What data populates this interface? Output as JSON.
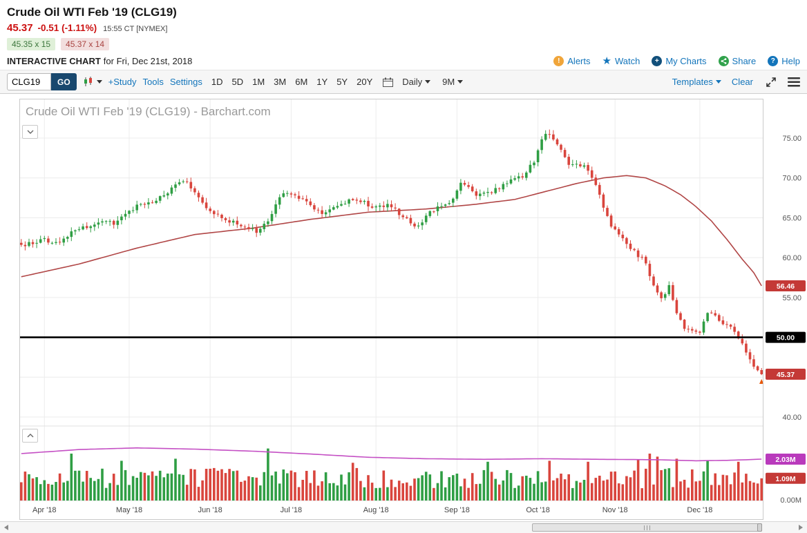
{
  "theme": {
    "link_blue": "#1375bb",
    "price_red": "#cc1111",
    "bid_bg": "#dff0d8",
    "bid_text": "#3c763d",
    "ask_bg": "#f2dede",
    "ask_text": "#a94442",
    "go_bg": "#19486e",
    "alert_orange": "#f0a53a",
    "mycharts_navy": "#12507b",
    "share_green": "#31a24c",
    "help_blue": "#1375bb",
    "up_green": "#2f9e44",
    "down_red": "#d9453d"
  },
  "header": {
    "title": "Crude Oil WTI Feb '19 (CLG19)",
    "last_price": "45.37",
    "change": "-0.51 (-1.11%)",
    "timestamp": "15:55 CT [NYMEX]",
    "bid": "45.35 x 15",
    "ask": "45.37 x 14",
    "section_label": "INTERACTIVE CHART",
    "section_context": "for Fri, Dec 21st, 2018",
    "links": {
      "alerts": "Alerts",
      "watch": "Watch",
      "my_charts": "My Charts",
      "share": "Share",
      "help": "Help"
    },
    "icons": {
      "alerts": "!",
      "watch": "★",
      "my_charts": "+",
      "help": "?"
    }
  },
  "toolbar": {
    "symbol_value": "CLG19",
    "go_label": "GO",
    "study_label": "+Study",
    "tools_label": "Tools",
    "settings_label": "Settings",
    "ranges": [
      "1D",
      "5D",
      "1M",
      "3M",
      "6M",
      "1Y",
      "5Y",
      "20Y"
    ],
    "frequency_value": "Daily",
    "span_value": "9M",
    "templates_label": "Templates",
    "clear_label": "Clear"
  },
  "chart_data": {
    "type": "candlestick",
    "title": "Crude Oil WTI Feb '19 (CLG19) - Barchart.com",
    "candle_count": 193,
    "last_close": 45.37,
    "y_axis": {
      "ticks": [
        {
          "value": 75,
          "label": "75.00"
        },
        {
          "value": 70,
          "label": "70.00"
        },
        {
          "value": 65,
          "label": "65.00"
        },
        {
          "value": 60,
          "label": "60.00"
        },
        {
          "value": 55,
          "label": "55.00"
        },
        {
          "value": 40,
          "label": "40.00"
        }
      ],
      "badges": [
        {
          "value": 56.46,
          "label": "56.46",
          "bg": "#c43936"
        },
        {
          "value": 50.0,
          "label": "50.00",
          "bg": "#000000"
        },
        {
          "value": 45.37,
          "label": "45.37",
          "bg": "#c43936"
        }
      ],
      "grid_values": [
        40,
        45,
        50,
        55,
        60,
        65,
        70,
        75
      ]
    },
    "x_axis": {
      "month_ticks": [
        {
          "index": 6,
          "label": "Apr '18"
        },
        {
          "index": 28,
          "label": "May '18"
        },
        {
          "index": 49,
          "label": "Jun '18"
        },
        {
          "index": 70,
          "label": "Jul '18"
        },
        {
          "index": 92,
          "label": "Aug '18"
        },
        {
          "index": 113,
          "label": "Sep '18"
        },
        {
          "index": 134,
          "label": "Oct '18"
        },
        {
          "index": 154,
          "label": "Nov '18"
        },
        {
          "index": 176,
          "label": "Dec '18"
        }
      ]
    },
    "horizontal_line": {
      "value": 50.0,
      "color": "#000000",
      "label": "50.00"
    },
    "price_path": [
      [
        0,
        61.6
      ],
      [
        6,
        62.2
      ],
      [
        10,
        62.0
      ],
      [
        14,
        63.6
      ],
      [
        18,
        64.0
      ],
      [
        22,
        64.6
      ],
      [
        24,
        64.2
      ],
      [
        27,
        65.6
      ],
      [
        30,
        66.5
      ],
      [
        34,
        67.1
      ],
      [
        38,
        68.2
      ],
      [
        42,
        69.8
      ],
      [
        44,
        68.8
      ],
      [
        46,
        67.6
      ],
      [
        49,
        65.6
      ],
      [
        53,
        64.9
      ],
      [
        57,
        64.0
      ],
      [
        61,
        63.2
      ],
      [
        64,
        64.6
      ],
      [
        67,
        67.4
      ],
      [
        69,
        68.3
      ],
      [
        72,
        67.4
      ],
      [
        75,
        66.6
      ],
      [
        78,
        65.7
      ],
      [
        81,
        66.2
      ],
      [
        84,
        67.0
      ],
      [
        87,
        67.3
      ],
      [
        91,
        66.4
      ],
      [
        95,
        66.7
      ],
      [
        98,
        65.6
      ],
      [
        101,
        64.2
      ],
      [
        103,
        64.0
      ],
      [
        106,
        65.8
      ],
      [
        109,
        66.4
      ],
      [
        112,
        67.3
      ],
      [
        114,
        69.2
      ],
      [
        116,
        68.7
      ],
      [
        118,
        67.9
      ],
      [
        121,
        68.1
      ],
      [
        124,
        68.7
      ],
      [
        127,
        69.7
      ],
      [
        130,
        70.2
      ],
      [
        133,
        72.0
      ],
      [
        135,
        74.6
      ],
      [
        136,
        75.6
      ],
      [
        138,
        74.8
      ],
      [
        140,
        73.8
      ],
      [
        142,
        71.7
      ],
      [
        144,
        71.9
      ],
      [
        146,
        71.3
      ],
      [
        148,
        70.1
      ],
      [
        150,
        67.8
      ],
      [
        153,
        63.9
      ],
      [
        156,
        62.2
      ],
      [
        159,
        60.8
      ],
      [
        162,
        59.4
      ],
      [
        164,
        56.3
      ],
      [
        166,
        54.9
      ],
      [
        168,
        56.3
      ],
      [
        170,
        53.0
      ],
      [
        172,
        51.3
      ],
      [
        174,
        50.8
      ],
      [
        176,
        50.6
      ],
      [
        178,
        53.1
      ],
      [
        180,
        52.7
      ],
      [
        182,
        51.7
      ],
      [
        184,
        51.6
      ],
      [
        186,
        50.1
      ],
      [
        188,
        47.9
      ],
      [
        190,
        46.3
      ],
      [
        192,
        45.37
      ]
    ],
    "moving_average": {
      "current": 56.46,
      "color": "#b04545",
      "path": [
        [
          0,
          57.6
        ],
        [
          15,
          59.2
        ],
        [
          30,
          61.2
        ],
        [
          45,
          62.9
        ],
        [
          60,
          63.7
        ],
        [
          75,
          64.8
        ],
        [
          90,
          65.7
        ],
        [
          105,
          66.1
        ],
        [
          118,
          66.7
        ],
        [
          128,
          67.3
        ],
        [
          136,
          68.3
        ],
        [
          144,
          69.3
        ],
        [
          151,
          70.0
        ],
        [
          157,
          70.3
        ],
        [
          162,
          70.0
        ],
        [
          167,
          69.0
        ],
        [
          171,
          67.9
        ],
        [
          175,
          66.4
        ],
        [
          179,
          64.6
        ],
        [
          183,
          62.3
        ],
        [
          187,
          59.8
        ],
        [
          190,
          58.1
        ],
        [
          192,
          56.46
        ]
      ]
    },
    "volume": {
      "axis": [
        {
          "value": 2.03,
          "label": "2.03M",
          "bg": "#b93abc"
        },
        {
          "value": 1.09,
          "label": "1.09M",
          "bg": "#c43936"
        }
      ],
      "zero_label": "0.00M",
      "last": 1.09,
      "ma_color": "#c44fc4",
      "ma_path": [
        [
          0,
          2.3
        ],
        [
          15,
          2.5
        ],
        [
          30,
          2.58
        ],
        [
          45,
          2.52
        ],
        [
          60,
          2.42
        ],
        [
          75,
          2.28
        ],
        [
          90,
          2.12
        ],
        [
          105,
          2.05
        ],
        [
          120,
          2.02
        ],
        [
          135,
          2.05
        ],
        [
          150,
          2.02
        ],
        [
          165,
          2.0
        ],
        [
          175,
          1.95
        ],
        [
          183,
          1.97
        ],
        [
          188,
          2.0
        ],
        [
          192,
          2.03
        ]
      ],
      "spikes": {
        "13": 2.3,
        "26": 1.95,
        "40": 2.05,
        "64": 2.55,
        "86": 1.85,
        "121": 1.9,
        "137": 1.95,
        "147": 1.9,
        "160": 2.0,
        "163": 2.3,
        "165": 2.15,
        "170": 2.05,
        "178": 1.95,
        "186": 1.9
      }
    },
    "colors": {
      "up": "#2f9e44",
      "down": "#d9453d"
    }
  }
}
